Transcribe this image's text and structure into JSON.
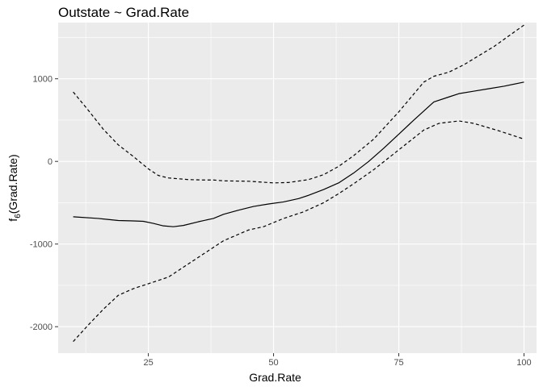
{
  "chart_data": {
    "type": "line",
    "title": "Outstate ~ Grad.Rate",
    "xlabel": "Grad.Rate",
    "ylabel": "f",
    "ylabel_subscript": "6",
    "ylabel_suffix": "(Grad.Rate)",
    "xlim": [
      7,
      102.5
    ],
    "ylim": [
      -2320,
      1680
    ],
    "x_ticks": [
      25,
      50,
      75,
      100
    ],
    "x_tick_labels": [
      "25",
      "50",
      "75",
      "100"
    ],
    "x_minor_ticks": [
      12.5,
      37.5,
      62.5,
      87.5
    ],
    "y_ticks": [
      -2000,
      -1000,
      0,
      1000
    ],
    "y_tick_labels": [
      "-2000",
      "-1000",
      "0",
      "1000"
    ],
    "y_minor_ticks": [
      -1500,
      -500,
      500,
      1500
    ],
    "grid": true,
    "colors": {
      "panel": "#ebebeb",
      "grid": "#ffffff",
      "line": "#000000",
      "tick": "#4d4d4d"
    },
    "series": [
      {
        "style": "solid",
        "x": [
          10,
          15,
          19,
          22,
          24,
          26,
          28,
          30,
          32,
          35,
          38,
          40,
          43,
          46,
          49,
          52,
          55,
          57,
          60,
          63,
          66,
          69,
          72,
          75,
          78,
          80,
          82,
          85,
          87,
          90,
          93,
          96,
          100
        ],
        "y": [
          -670,
          -690,
          -715,
          -720,
          -725,
          -750,
          -780,
          -790,
          -775,
          -730,
          -690,
          -640,
          -590,
          -545,
          -515,
          -490,
          -450,
          -410,
          -340,
          -260,
          -140,
          0,
          160,
          330,
          500,
          610,
          720,
          780,
          820,
          850,
          880,
          910,
          960
        ]
      },
      {
        "style": "dashed",
        "x": [
          10,
          13,
          16,
          19,
          22,
          25,
          27,
          29,
          31,
          33,
          36,
          38,
          40,
          45,
          50,
          53,
          57,
          60,
          63,
          66,
          70,
          75,
          80,
          82,
          85,
          88,
          91,
          94,
          97,
          100
        ],
        "y": [
          840,
          620,
          390,
          200,
          60,
          -90,
          -170,
          -200,
          -210,
          -220,
          -225,
          -225,
          -235,
          -240,
          -260,
          -255,
          -220,
          -160,
          -60,
          70,
          270,
          600,
          960,
          1030,
          1080,
          1170,
          1280,
          1390,
          1520,
          1650
        ]
      },
      {
        "style": "dashed",
        "x": [
          10,
          13,
          16,
          19,
          22,
          25,
          29,
          32,
          36,
          40,
          45,
          48,
          52,
          56,
          60,
          63,
          66,
          70,
          75,
          80,
          83,
          87,
          90,
          95,
          100
        ],
        "y": [
          -2180,
          -1980,
          -1790,
          -1620,
          -1540,
          -1480,
          -1400,
          -1280,
          -1120,
          -960,
          -830,
          -790,
          -690,
          -610,
          -500,
          -390,
          -270,
          -100,
          140,
          380,
          460,
          490,
          460,
          370,
          270
        ]
      }
    ]
  }
}
